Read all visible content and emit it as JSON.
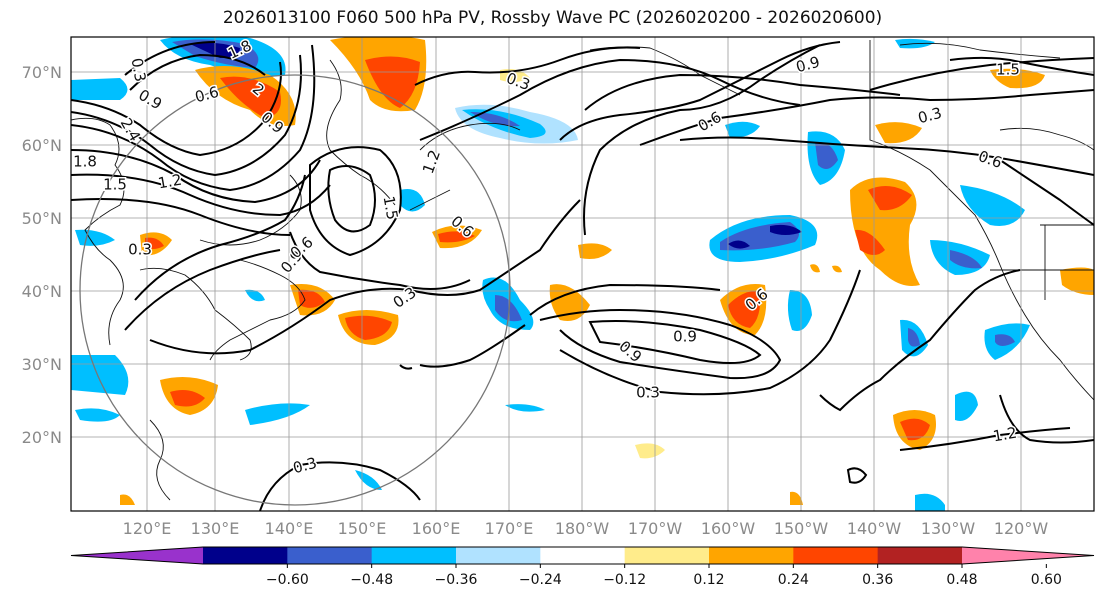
{
  "title": "2026013100 F060 500 hPa PV, Rossby Wave PC (2026020200 - 2026020600)",
  "lat_labels": [
    "70°N",
    "60°N",
    "50°N",
    "40°N",
    "30°N",
    "20°N"
  ],
  "lon_labels": [
    "120°E",
    "130°E",
    "140°E",
    "150°E",
    "160°E",
    "170°E",
    "180°W",
    "170°W",
    "160°W",
    "150°W",
    "140°W",
    "130°W",
    "120°W"
  ],
  "colorbar": {
    "ticks": [
      "−0.60",
      "−0.48",
      "−0.36",
      "−0.24",
      "−0.12",
      "0.12",
      "0.24",
      "0.36",
      "0.48",
      "0.60"
    ],
    "colors": [
      "#9932cc",
      "#00008b",
      "#3a5fcd",
      "#00bfff",
      "#b0e2ff",
      "#ffffff",
      "#ffec8b",
      "#ffa500",
      "#ff4500",
      "#b22222",
      "#ff82ab"
    ]
  },
  "contour_labels": [
    "1.8",
    "0.3",
    "0.9",
    "2.4",
    "1.8",
    "1.5",
    "1.2",
    "0.6",
    "2",
    "0.9",
    "1.5",
    "1.2",
    "0.9",
    "0.6",
    "0.3",
    "0.6",
    "0.3",
    "0.6",
    "0.9",
    "1.5",
    "0.9",
    "0.6",
    "0.9",
    "1.2",
    "0.3",
    "0.6",
    "0.3",
    "0.3",
    "0.3"
  ]
}
